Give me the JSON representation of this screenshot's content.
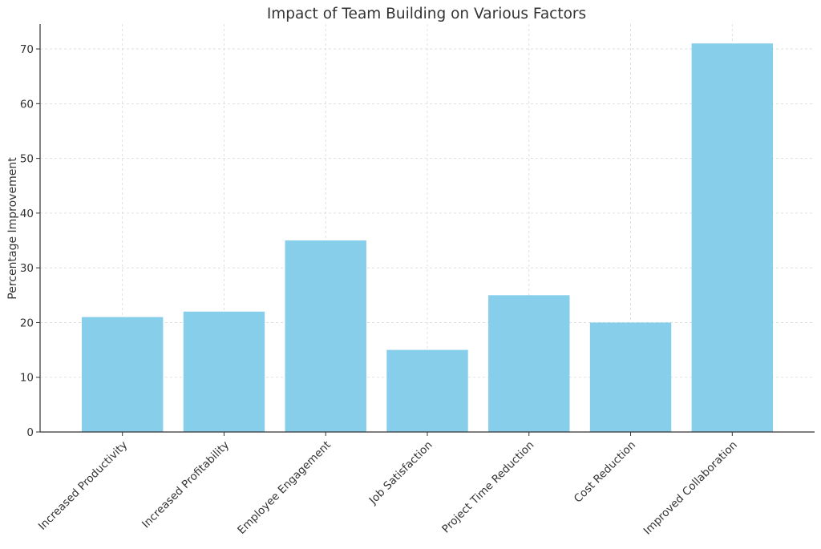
{
  "chart_data": {
    "type": "bar",
    "title": "Impact of Team Building on Various Factors",
    "xlabel": "",
    "ylabel": "Percentage Improvement",
    "categories": [
      "Increased Productivity",
      "Increased Profitability",
      "Employee Engagement",
      "Job Satisfaction",
      "Project Time Reduction",
      "Cost Reduction",
      "Improved Collaboration"
    ],
    "values": [
      21,
      22,
      35,
      15,
      25,
      20,
      71
    ],
    "ylim": [
      0,
      74.55
    ],
    "yticks": [
      0,
      10,
      20,
      30,
      40,
      50,
      60,
      70
    ],
    "grid": true,
    "bar_color": "#87ceeb",
    "grid_color": "#d9d9d9",
    "axis_color": "#333333",
    "text_color": "#333333"
  }
}
